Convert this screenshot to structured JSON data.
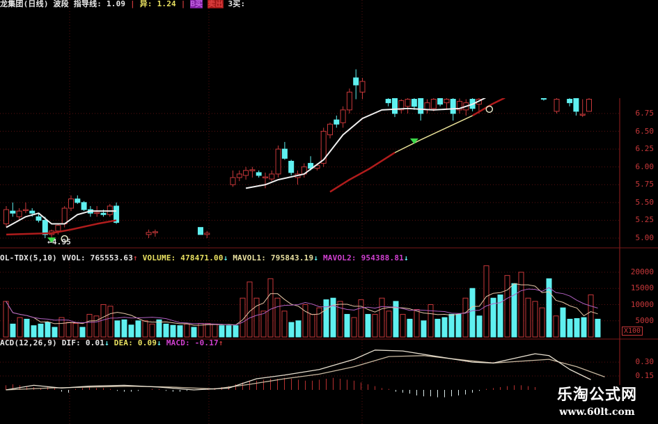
{
  "colors": {
    "up": "#c8383a",
    "down": "#5ff0f0",
    "ma_short": "#f0f0f0",
    "ma_long": "#b01c1c",
    "ma_mid": "#e8e098",
    "grid": "#5a1010",
    "axis_text": "#c8383a",
    "signal": "#3cd84a"
  },
  "price_panel": {
    "header": {
      "title": "龙集团(日线)",
      "indicator": "波段 指导线: 1.09",
      "sep1": "|",
      "diff": "异: 1.24",
      "sep2": "|",
      "buy_b": "B买",
      "sell": "卖出",
      "buy_3": "3买:"
    },
    "y_ticks": [
      "6.75",
      "6.50",
      "6.25",
      "6.00",
      "5.75",
      "5.50",
      "5.25",
      "5.00"
    ],
    "low_label": "4.95",
    "candles": [
      [
        0,
        5.2,
        5.45,
        5.15,
        5.4
      ],
      [
        1,
        5.38,
        5.5,
        5.3,
        5.35
      ],
      [
        2,
        5.3,
        5.42,
        5.25,
        5.38
      ],
      [
        3,
        5.4,
        5.5,
        5.35,
        5.4
      ],
      [
        4,
        5.38,
        5.42,
        5.3,
        5.35
      ],
      [
        5,
        5.3,
        5.35,
        5.22,
        5.25
      ],
      [
        6,
        5.25,
        5.3,
        5.0,
        5.05
      ],
      [
        7,
        5.05,
        5.12,
        4.95,
        5.1
      ],
      [
        8,
        5.1,
        5.2,
        5.05,
        5.18
      ],
      [
        9,
        5.2,
        5.45,
        5.15,
        5.42
      ],
      [
        10,
        5.42,
        5.6,
        5.38,
        5.55
      ],
      [
        11,
        5.55,
        5.6,
        5.48,
        5.5
      ],
      [
        12,
        5.5,
        5.52,
        5.38,
        5.4
      ],
      [
        13,
        5.4,
        5.45,
        5.3,
        5.35
      ],
      [
        14,
        5.35,
        5.45,
        5.3,
        5.36
      ],
      [
        15,
        5.35,
        5.4,
        5.3,
        5.33
      ],
      [
        16,
        5.33,
        5.48,
        5.3,
        5.45
      ],
      [
        17,
        5.45,
        5.5,
        5.2,
        5.22
      ],
      [
        22,
        5.05,
        5.12,
        5.0,
        5.08
      ],
      [
        23,
        5.08,
        5.12,
        5.02,
        5.09
      ],
      [
        30,
        5.15,
        5.15,
        5.05,
        5.05
      ],
      [
        31,
        5.05,
        5.1,
        5.0,
        5.07
      ],
      [
        35,
        5.75,
        5.95,
        5.72,
        5.85
      ],
      [
        36,
        5.85,
        5.95,
        5.8,
        5.9
      ],
      [
        37,
        5.88,
        6.0,
        5.82,
        5.95
      ],
      [
        38,
        5.95,
        6.0,
        5.85,
        5.96
      ],
      [
        39,
        5.92,
        5.95,
        5.85,
        5.88
      ],
      [
        40,
        5.85,
        5.92,
        5.7,
        5.86
      ],
      [
        41,
        5.83,
        5.95,
        5.8,
        5.9
      ],
      [
        42,
        5.9,
        6.3,
        5.85,
        6.25
      ],
      [
        43,
        6.25,
        6.35,
        6.1,
        6.12
      ],
      [
        44,
        6.08,
        6.1,
        5.88,
        5.92
      ],
      [
        45,
        5.85,
        5.95,
        5.75,
        5.9
      ],
      [
        46,
        5.9,
        6.05,
        5.85,
        6.0
      ],
      [
        47,
        6.05,
        6.15,
        5.95,
        5.98
      ],
      [
        48,
        5.98,
        6.05,
        5.95,
        6.02
      ],
      [
        49,
        6.05,
        6.55,
        6.0,
        6.5
      ],
      [
        50,
        6.45,
        6.62,
        6.4,
        6.6
      ],
      [
        51,
        6.66,
        6.72,
        6.55,
        6.6
      ],
      [
        52,
        6.62,
        6.85,
        6.55,
        6.8
      ],
      [
        53,
        6.8,
        7.1,
        6.75,
        7.05
      ],
      [
        54,
        7.25,
        7.37,
        6.95,
        7.15
      ],
      [
        55,
        7.05,
        7.25,
        6.95,
        7.2
      ],
      [
        59,
        6.95,
        7.0,
        6.85,
        6.9
      ],
      [
        60,
        6.97,
        7.0,
        6.7,
        6.75
      ],
      [
        61,
        6.8,
        6.95,
        6.75,
        6.93
      ],
      [
        62,
        6.85,
        7.0,
        6.75,
        6.95
      ],
      [
        63,
        6.95,
        6.98,
        6.8,
        6.85
      ],
      [
        64,
        6.97,
        7.0,
        6.65,
        6.75
      ],
      [
        65,
        6.8,
        6.95,
        6.75,
        6.9
      ],
      [
        66,
        6.82,
        6.97,
        6.78,
        6.95
      ],
      [
        67,
        6.97,
        6.98,
        6.85,
        6.88
      ],
      [
        68,
        6.9,
        7.0,
        6.8,
        6.95
      ],
      [
        69,
        6.95,
        6.98,
        6.65,
        6.75
      ],
      [
        70,
        6.8,
        6.96,
        6.75,
        6.92
      ],
      [
        71,
        6.8,
        6.95,
        6.72,
        6.9
      ],
      [
        72,
        6.95,
        6.98,
        6.78,
        6.82
      ],
      [
        73,
        6.88,
        6.97,
        6.75,
        6.95
      ],
      [
        83,
        6.97,
        6.98,
        6.93,
        6.95
      ],
      [
        85,
        6.78,
        6.97,
        6.75,
        6.95
      ],
      [
        87,
        6.95,
        6.97,
        6.85,
        6.9
      ],
      [
        88,
        6.97,
        6.98,
        6.72,
        6.78
      ],
      [
        89,
        6.73,
        6.95,
        6.7,
        6.74
      ],
      [
        90,
        6.78,
        6.97,
        6.78,
        6.95
      ]
    ],
    "ma_short": [
      [
        [
          0,
          5.15
        ],
        [
          3,
          5.3
        ],
        [
          5,
          5.35
        ],
        [
          7,
          5.2
        ],
        [
          9,
          5.2
        ],
        [
          11,
          5.33
        ],
        [
          13,
          5.38
        ],
        [
          17,
          5.38
        ]
      ],
      [
        [
          37,
          5.7
        ],
        [
          40,
          5.75
        ],
        [
          42,
          5.82
        ],
        [
          46,
          5.9
        ],
        [
          49,
          6.1
        ],
        [
          52,
          6.45
        ],
        [
          55,
          6.68
        ],
        [
          58,
          6.8
        ],
        [
          62,
          6.82
        ],
        [
          66,
          6.8
        ],
        [
          70,
          6.82
        ],
        [
          72,
          6.88
        ],
        [
          74,
          6.97
        ]
      ]
    ],
    "ma_long": [
      [
        [
          0,
          5.05
        ],
        [
          7,
          5.07
        ],
        [
          10,
          5.12
        ],
        [
          14,
          5.2
        ],
        [
          17,
          5.25
        ]
      ],
      [
        [
          50,
          5.65
        ],
        [
          53,
          5.82
        ],
        [
          56,
          5.97
        ],
        [
          60,
          6.2
        ]
      ],
      [
        [
          72,
          6.72
        ],
        [
          75,
          6.88
        ],
        [
          77,
          6.97
        ]
      ]
    ],
    "ma_mid": [
      [
        [
          60,
          6.2
        ],
        [
          64,
          6.38
        ],
        [
          68,
          6.55
        ],
        [
          72,
          6.72
        ]
      ]
    ],
    "signals": [
      {
        "index": 7,
        "price": 4.97,
        "type": "triangle"
      },
      {
        "index": 63,
        "price": 6.36,
        "type": "triangle"
      },
      {
        "index": 9,
        "price": 4.99,
        "type": "circle"
      },
      {
        "index": 74.6,
        "price": 6.81,
        "type": "circle"
      }
    ]
  },
  "volume_panel": {
    "header": {
      "name": "OL-TDX(5,10)",
      "vvol": "VVOL: 765553.63",
      "vvol_arrow": "↑",
      "volume": "VOLUME: 478471.00",
      "volume_arrow": "↓",
      "mavol1": "MAVOL1: 795843.19",
      "mavol1_arrow": "↓",
      "mavol2": "MAVOL2: 954388.81",
      "mavol2_arrow": "↓"
    },
    "y_ticks": [
      "20000",
      "15000",
      "10000",
      "5000"
    ],
    "unit": "X100",
    "bars": [
      11000,
      -4000,
      6000,
      -5500,
      -3500,
      -4000,
      -4500,
      -3000,
      6000,
      4500,
      4200,
      -3000,
      7000,
      6500,
      10000,
      9500,
      -5000,
      -5300,
      -3700,
      -5000,
      5000,
      4000,
      -5300,
      -4000,
      -3600,
      -3500,
      4000,
      -3000,
      4200,
      4200,
      4000,
      -3500,
      -3500,
      -3500,
      12000,
      17000,
      12000,
      8000,
      18000,
      12000,
      8000,
      -4500,
      -5000,
      10000,
      7000,
      9000,
      -11500,
      -12000,
      11000,
      -7000,
      6000,
      11500,
      -7000,
      7000,
      12000,
      8000,
      -11000,
      7000,
      -5500,
      8500,
      -5000,
      10000,
      -5500,
      -6000,
      -7000,
      -7000,
      12000,
      -15000,
      -6500,
      22000,
      -12000,
      -13000,
      19000,
      -16500,
      20000,
      12000,
      11000,
      9000,
      -18000,
      6500,
      -9000,
      -5500,
      -5700,
      -6000,
      13000,
      -5500
    ]
  },
  "macd_panel": {
    "header": {
      "name": "ACD(12,26,9)",
      "dif": "DIF: 0.01",
      "dif_arrow": "↓",
      "dea": "DEA: 0.09",
      "dea_arrow": "↓",
      "macd": "MACD: -0.17",
      "macd_arrow": "↑"
    },
    "y_ticks": [
      "0.30",
      "0.15"
    ],
    "dif": [
      [
        0,
        0.0
      ],
      [
        4,
        0.05
      ],
      [
        8,
        0.02
      ],
      [
        12,
        0.04
      ],
      [
        17,
        0.05
      ],
      [
        22,
        0.03
      ],
      [
        27,
        0.0
      ],
      [
        32,
        0.02
      ],
      [
        36,
        0.12
      ],
      [
        40,
        0.16
      ],
      [
        45,
        0.22
      ],
      [
        50,
        0.33
      ],
      [
        53,
        0.43
      ],
      [
        57,
        0.42
      ],
      [
        62,
        0.36
      ],
      [
        67,
        0.3
      ],
      [
        70,
        0.29
      ],
      [
        73,
        0.34
      ],
      [
        76,
        0.39
      ],
      [
        78,
        0.37
      ],
      [
        81,
        0.22
      ],
      [
        84,
        0.11
      ]
    ],
    "dea": [
      [
        0,
        0.0
      ],
      [
        6,
        0.02
      ],
      [
        12,
        0.03
      ],
      [
        18,
        0.04
      ],
      [
        24,
        0.03
      ],
      [
        30,
        0.01
      ],
      [
        35,
        0.06
      ],
      [
        40,
        0.12
      ],
      [
        45,
        0.17
      ],
      [
        50,
        0.25
      ],
      [
        55,
        0.36
      ],
      [
        60,
        0.37
      ],
      [
        66,
        0.32
      ],
      [
        70,
        0.29
      ],
      [
        74,
        0.31
      ],
      [
        78,
        0.33
      ],
      [
        82,
        0.25
      ],
      [
        86,
        0.14
      ]
    ],
    "hist": [
      0.05,
      0.06,
      0.05,
      0.04,
      0.03,
      0.02,
      0.03,
      0.02,
      -0.02,
      -0.03,
      0.01,
      0.02,
      0.03,
      0.02,
      0.02,
      0.01,
      -0.01,
      -0.02,
      -0.02,
      -0.01,
      0,
      0.01,
      0.01,
      -0.01,
      -0.02,
      -0.02,
      -0.01,
      0,
      0.01,
      0.02,
      0.02,
      0.03,
      0.04,
      0.06,
      0.08,
      0.1,
      0.1,
      0.11,
      0.12,
      0.12,
      0.13,
      0.12,
      0.11,
      0.1,
      0.1,
      0.11,
      0.12,
      0.13,
      0.12,
      0.11,
      0.1,
      0.08,
      0.06,
      0.04,
      0.02,
      0.01,
      -0.02,
      -0.03,
      -0.04,
      -0.06,
      -0.07,
      -0.07,
      -0.08,
      -0.08,
      -0.07,
      -0.06,
      -0.05,
      -0.03,
      -0.01,
      0.01,
      0.02,
      0.03,
      0.04,
      0.05,
      0.05,
      0.04,
      0.03,
      0.02,
      0,
      -0.01,
      -0.02,
      -0.03,
      -0.04,
      -0.04,
      -0.05,
      -0.05
    ]
  },
  "watermark": {
    "title": "乐淘公式网",
    "url": "www.60lt.com"
  }
}
